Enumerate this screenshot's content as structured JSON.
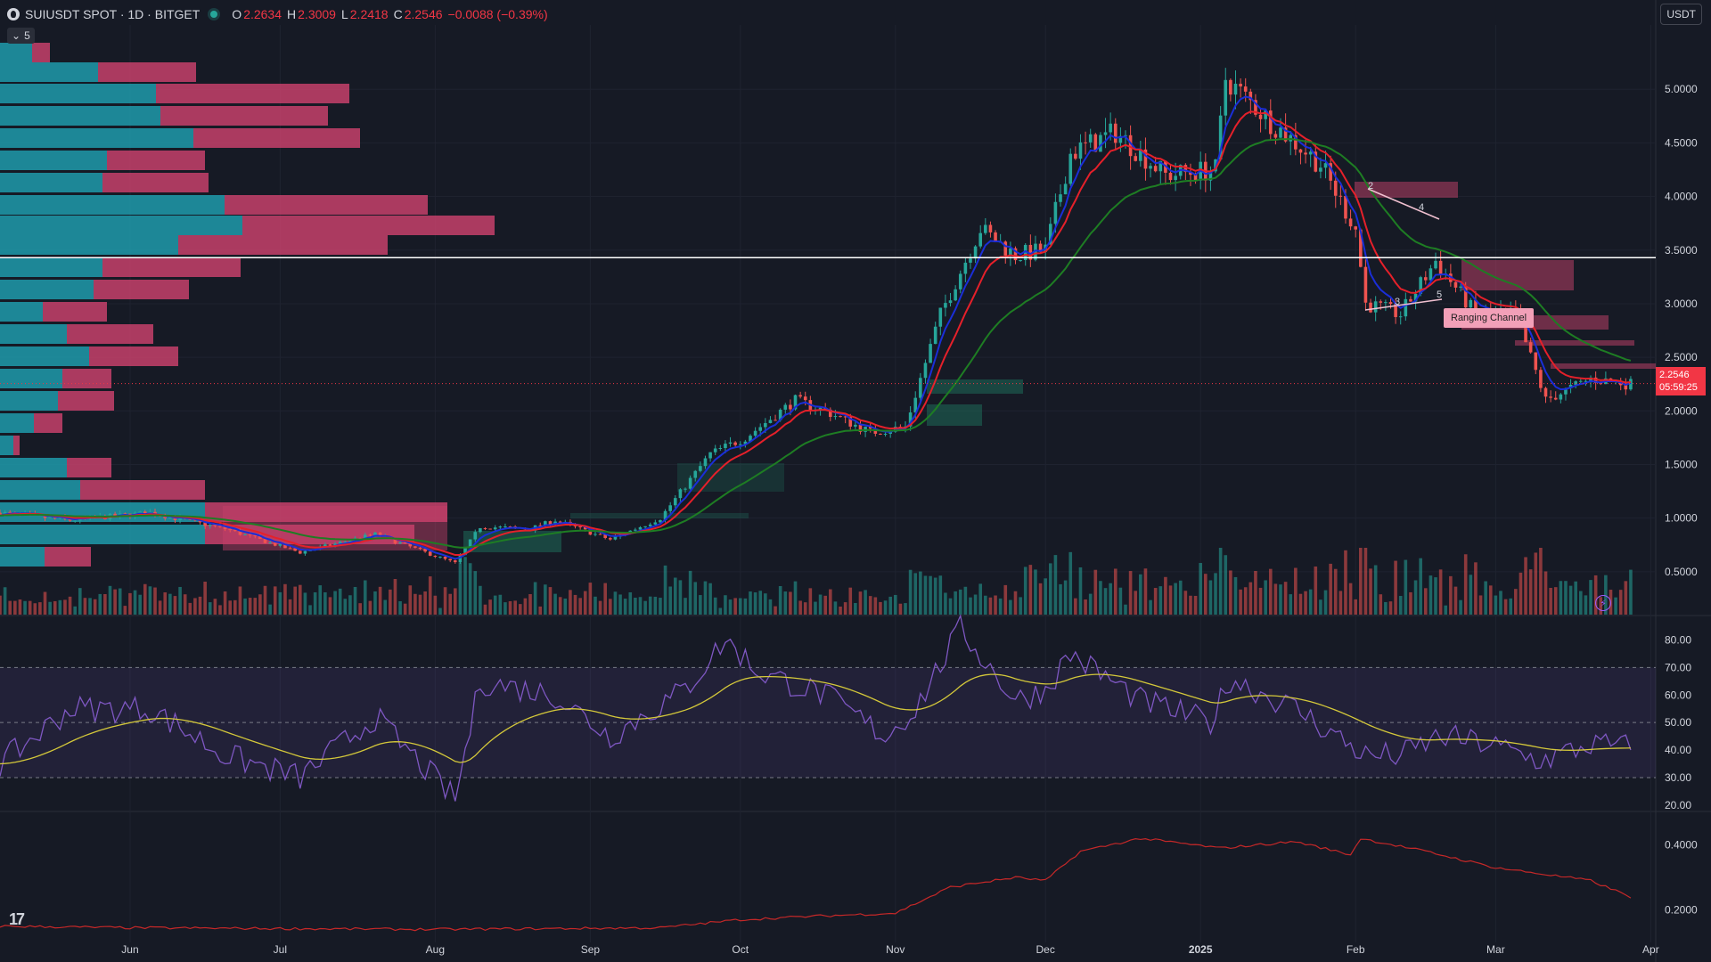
{
  "header": {
    "symbol": "SUIUSDT SPOT · 1D · BITGET",
    "open_label": "O",
    "open": "2.2634",
    "high_label": "H",
    "high": "2.3009",
    "low_label": "L",
    "low": "2.2418",
    "close_label": "C",
    "close": "2.2546",
    "change": "−0.0088 (−0.39%)"
  },
  "indicator_toggle": {
    "count": "5"
  },
  "currency_button": "USDT",
  "price_tag": {
    "price": "2.2546",
    "countdown": "05:59:25"
  },
  "annotation": {
    "label": "Ranging Channel",
    "waves": [
      "2",
      "4",
      "3",
      "5"
    ]
  },
  "colors": {
    "up": "#26a69a",
    "down": "#ef5350",
    "ema_fast": "#1a2ed8",
    "ema_mid": "#e5202a",
    "ema_slow": "#1e7d23",
    "rsi": "#7e57c2",
    "rsi_ma": "#d4c83a"
  },
  "chart_data": [
    {
      "type": "candlestick",
      "name": "price",
      "y_ticks": [
        "5.0000",
        "4.5000",
        "4.0000",
        "3.5000",
        "3.0000",
        "2.5000",
        "2.0000",
        "1.5000",
        "1.0000",
        "0.5000"
      ],
      "ylim": [
        0.1,
        5.6
      ],
      "x_ticks": [
        "Jun",
        "Jul",
        "Aug",
        "Sep",
        "Oct",
        "Nov",
        "Dec",
        "2025",
        "Feb",
        "Mar",
        "Apr"
      ],
      "x_tick_dates": [
        "2024-06-01",
        "2024-07-01",
        "2024-08-01",
        "2024-09-01",
        "2024-10-01",
        "2024-11-01",
        "2024-12-01",
        "2025-01-01",
        "2025-02-01",
        "2025-03-01",
        "2025-04-01"
      ],
      "x_range": [
        "2024-05-06",
        "2025-04-02"
      ],
      "horizontal_line": 3.43,
      "close_anchors": [
        [
          "2024-05-06",
          1.05
        ],
        [
          "2024-05-20",
          0.98
        ],
        [
          "2024-06-05",
          1.05
        ],
        [
          "2024-06-20",
          0.9
        ],
        [
          "2024-07-05",
          0.68
        ],
        [
          "2024-07-20",
          0.85
        ],
        [
          "2024-08-05",
          0.58
        ],
        [
          "2024-08-10",
          0.92
        ],
        [
          "2024-08-20",
          0.9
        ],
        [
          "2024-08-25",
          0.98
        ],
        [
          "2024-09-05",
          0.8
        ],
        [
          "2024-09-15",
          1.0
        ],
        [
          "2024-09-25",
          1.6
        ],
        [
          "2024-10-02",
          1.75
        ],
        [
          "2024-10-12",
          2.1
        ],
        [
          "2024-10-18",
          2.0
        ],
        [
          "2024-10-27",
          1.8
        ],
        [
          "2024-11-03",
          1.85
        ],
        [
          "2024-11-10",
          2.9
        ],
        [
          "2024-11-18",
          3.7
        ],
        [
          "2024-11-25",
          3.45
        ],
        [
          "2024-12-01",
          3.5
        ],
        [
          "2024-12-06",
          4.4
        ],
        [
          "2024-12-15",
          4.6
        ],
        [
          "2024-12-25",
          4.2
        ],
        [
          "2025-01-04",
          4.25
        ],
        [
          "2025-01-06",
          5.1
        ],
        [
          "2025-01-15",
          4.7
        ],
        [
          "2025-01-25",
          4.3
        ],
        [
          "2025-02-01",
          3.7
        ],
        [
          "2025-02-03",
          3.0
        ],
        [
          "2025-02-10",
          2.9
        ],
        [
          "2025-02-17",
          3.4
        ],
        [
          "2025-02-25",
          2.9
        ],
        [
          "2025-03-05",
          2.9
        ],
        [
          "2025-03-11",
          2.1
        ],
        [
          "2025-03-20",
          2.3
        ],
        [
          "2025-03-28",
          2.25
        ]
      ],
      "series": [
        {
          "name": "ema_fast",
          "color": "#1a2ed8"
        },
        {
          "name": "ema_mid",
          "color": "#e5202a"
        },
        {
          "name": "ema_slow",
          "color": "#1e7d23"
        }
      ],
      "last_close": 2.2546
    },
    {
      "type": "line",
      "name": "rsi",
      "y_ticks": [
        "80.00",
        "70.00",
        "60.00",
        "50.00",
        "40.00",
        "30.00",
        "20.00"
      ],
      "ylim": [
        18,
        86
      ],
      "bands": [
        30,
        50,
        70
      ],
      "anchors": [
        [
          "2024-05-06",
          35
        ],
        [
          "2024-05-20",
          55
        ],
        [
          "2024-06-05",
          55
        ],
        [
          "2024-06-20",
          38
        ],
        [
          "2024-07-05",
          30
        ],
        [
          "2024-07-20",
          52
        ],
        [
          "2024-08-05",
          22
        ],
        [
          "2024-08-10",
          65
        ],
        [
          "2024-08-25",
          60
        ],
        [
          "2024-09-05",
          45
        ],
        [
          "2024-09-20",
          62
        ],
        [
          "2024-09-28",
          80
        ],
        [
          "2024-10-05",
          68
        ],
        [
          "2024-10-18",
          60
        ],
        [
          "2024-10-30",
          45
        ],
        [
          "2024-11-05",
          55
        ],
        [
          "2024-11-14",
          84
        ],
        [
          "2024-11-25",
          58
        ],
        [
          "2024-12-01",
          62
        ],
        [
          "2024-12-06",
          75
        ],
        [
          "2024-12-20",
          58
        ],
        [
          "2025-01-03",
          50
        ],
        [
          "2025-01-07",
          66
        ],
        [
          "2025-01-20",
          55
        ],
        [
          "2025-02-03",
          38
        ],
        [
          "2025-02-10",
          38
        ],
        [
          "2025-02-18",
          45
        ],
        [
          "2025-02-28",
          42
        ],
        [
          "2025-03-10",
          36
        ],
        [
          "2025-03-20",
          42
        ],
        [
          "2025-03-28",
          41
        ]
      ]
    },
    {
      "type": "line",
      "name": "indicator",
      "y_ticks": [
        "0.4000",
        "0.2000"
      ],
      "ylim": [
        0.1,
        0.5
      ],
      "anchors": [
        [
          "2024-05-06",
          0.15
        ],
        [
          "2024-06-01",
          0.145
        ],
        [
          "2024-08-01",
          0.14
        ],
        [
          "2024-09-15",
          0.145
        ],
        [
          "2024-10-01",
          0.17
        ],
        [
          "2024-10-15",
          0.18
        ],
        [
          "2024-11-01",
          0.19
        ],
        [
          "2024-11-12",
          0.27
        ],
        [
          "2024-11-25",
          0.3
        ],
        [
          "2024-12-01",
          0.29
        ],
        [
          "2024-12-08",
          0.38
        ],
        [
          "2024-12-20",
          0.42
        ],
        [
          "2025-01-05",
          0.39
        ],
        [
          "2025-01-20",
          0.41
        ],
        [
          "2025-01-31",
          0.37
        ],
        [
          "2025-02-02",
          0.42
        ],
        [
          "2025-02-15",
          0.38
        ],
        [
          "2025-03-01",
          0.33
        ],
        [
          "2025-03-20",
          0.29
        ],
        [
          "2025-03-28",
          0.24
        ]
      ]
    }
  ]
}
